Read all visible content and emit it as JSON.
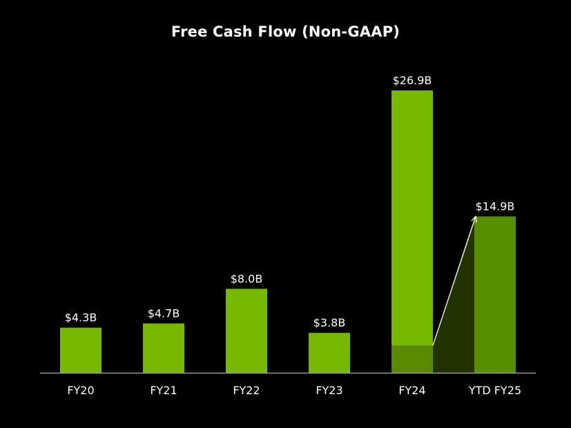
{
  "chart_data": {
    "type": "bar",
    "title": "Free Cash Flow (Non-GAAP)",
    "xlabel": "",
    "ylabel": "",
    "categories": [
      "FY20",
      "FY21",
      "FY22",
      "FY23",
      "FY24",
      "YTD FY25"
    ],
    "values": [
      4.3,
      4.7,
      8.0,
      3.8,
      26.9,
      14.9
    ],
    "value_labels": [
      "$4.3B",
      "$4.7B",
      "$8.0B",
      "$3.8B",
      "$26.9B",
      "$14.9B"
    ],
    "ylim": [
      0,
      26.9
    ],
    "grid": false,
    "legend": "none",
    "annotation": {
      "type": "arrow",
      "from_category": "FY24",
      "from_value": 2.6,
      "to_category": "YTD FY25",
      "to_value": 14.9,
      "fy24_highlight_segment_value": 2.6
    }
  },
  "colors": {
    "background": "#000000",
    "bar": "#76b900",
    "bar_dark": "#578f00",
    "highlight_segment": "#5a8a00",
    "growth_wedge": "#233300",
    "axis": "#999999",
    "text": "#ffffff"
  }
}
